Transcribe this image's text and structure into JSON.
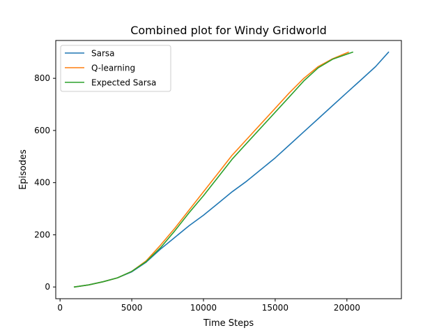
{
  "chart_data": {
    "type": "line",
    "title": "Combined plot for Windy Gridworld",
    "xlabel": "Time Steps",
    "ylabel": "Episodes",
    "xlim": [
      -300,
      23800
    ],
    "ylim": [
      -45,
      945
    ],
    "xticks": [
      0,
      5000,
      10000,
      15000,
      20000
    ],
    "xtick_labels": [
      "0",
      "5000",
      "10000",
      "15000",
      "20000"
    ],
    "yticks": [
      0,
      200,
      400,
      600,
      800
    ],
    "ytick_labels": [
      "0",
      "200",
      "400",
      "600",
      "800"
    ],
    "grid": false,
    "legend_position": "top-left",
    "series": [
      {
        "name": "Sarsa",
        "color": "#1f77b4",
        "points": [
          [
            1000,
            0
          ],
          [
            2000,
            8
          ],
          [
            3000,
            20
          ],
          [
            4000,
            35
          ],
          [
            5000,
            58
          ],
          [
            6000,
            95
          ],
          [
            7000,
            145
          ],
          [
            8000,
            190
          ],
          [
            9000,
            235
          ],
          [
            10000,
            275
          ],
          [
            11000,
            320
          ],
          [
            12000,
            365
          ],
          [
            13000,
            405
          ],
          [
            14000,
            450
          ],
          [
            15000,
            495
          ],
          [
            16000,
            545
          ],
          [
            17000,
            595
          ],
          [
            18000,
            645
          ],
          [
            19000,
            695
          ],
          [
            20000,
            745
          ],
          [
            21000,
            795
          ],
          [
            22000,
            845
          ],
          [
            22900,
            900
          ]
        ]
      },
      {
        "name": "Q-learning",
        "color": "#ff7f0e",
        "points": [
          [
            1000,
            0
          ],
          [
            2000,
            8
          ],
          [
            3000,
            20
          ],
          [
            4000,
            35
          ],
          [
            5000,
            60
          ],
          [
            6000,
            100
          ],
          [
            7000,
            160
          ],
          [
            8000,
            225
          ],
          [
            9000,
            295
          ],
          [
            10000,
            365
          ],
          [
            11000,
            435
          ],
          [
            12000,
            505
          ],
          [
            13000,
            565
          ],
          [
            14000,
            625
          ],
          [
            15000,
            685
          ],
          [
            16000,
            745
          ],
          [
            17000,
            800
          ],
          [
            18000,
            845
          ],
          [
            19000,
            875
          ],
          [
            20100,
            900
          ]
        ]
      },
      {
        "name": "Expected Sarsa",
        "color": "#2ca02c",
        "points": [
          [
            1000,
            0
          ],
          [
            2000,
            8
          ],
          [
            3000,
            20
          ],
          [
            4000,
            35
          ],
          [
            5000,
            60
          ],
          [
            6000,
            97
          ],
          [
            7000,
            150
          ],
          [
            8000,
            215
          ],
          [
            9000,
            285
          ],
          [
            10000,
            350
          ],
          [
            11000,
            420
          ],
          [
            12000,
            490
          ],
          [
            13000,
            550
          ],
          [
            14000,
            610
          ],
          [
            15000,
            670
          ],
          [
            16000,
            730
          ],
          [
            17000,
            790
          ],
          [
            18000,
            840
          ],
          [
            19000,
            873
          ],
          [
            20400,
            900
          ]
        ]
      }
    ]
  }
}
